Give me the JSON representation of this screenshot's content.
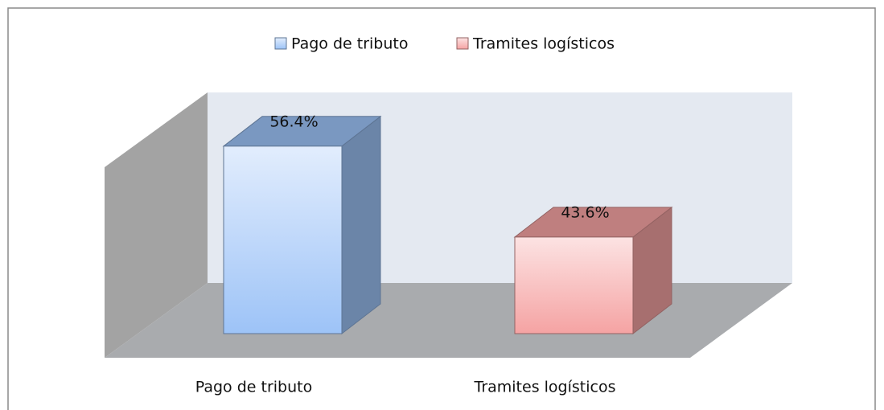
{
  "chart_data": {
    "type": "bar3d",
    "categories": [
      "Pago de tributo",
      "Tramites logísticos"
    ],
    "values": [
      56.4,
      43.6
    ],
    "value_labels": [
      "56.4%",
      "43.6%"
    ],
    "colors": [
      "#9dc3f7",
      "#f5a3a3"
    ],
    "ylim": [
      30,
      60
    ],
    "legend": "top"
  }
}
